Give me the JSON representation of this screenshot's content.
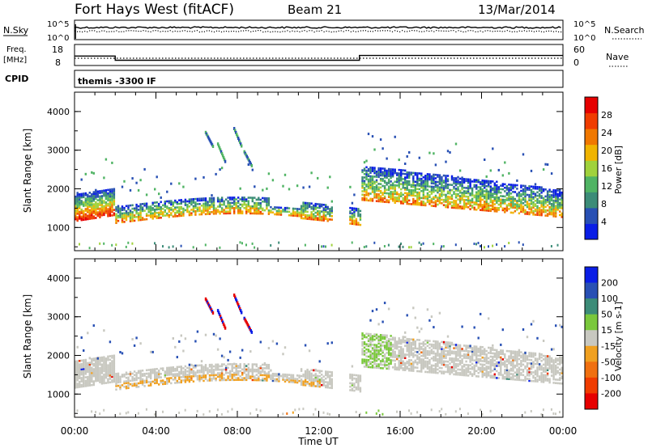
{
  "header": {
    "station": "Fort Hays West (fitACF)",
    "beam": "Beam 21",
    "date": "13/Mar/2014"
  },
  "noise_panel": {
    "left_label": "N.Sky",
    "right_label": "N.Search",
    "left_ticks": [
      "10^5",
      "10^0"
    ],
    "right_ticks": [
      "10^5",
      "10^0"
    ]
  },
  "freq_panel": {
    "left_label_line1": "Freq.",
    "left_label_line2": "[MHz]",
    "right_label": "Nave",
    "left_ticks": [
      "18",
      "8"
    ],
    "right_ticks": [
      "60",
      "0"
    ],
    "freq_segments": [
      {
        "start_hour": 0.0,
        "end_hour": 2.0,
        "freq_mhz": 12.5
      },
      {
        "start_hour": 2.0,
        "end_hour": 14.0,
        "freq_mhz": 10.5
      },
      {
        "start_hour": 14.0,
        "end_hour": 24.0,
        "freq_mhz": 12.8
      }
    ]
  },
  "cpid": {
    "label": "CPID",
    "program": "themis -3300 IF"
  },
  "chart_data": [
    {
      "type": "heatmap",
      "quantity": "power",
      "ylabel": "Slant Range [km]",
      "y_ticks": [
        "1000",
        "2000",
        "3000",
        "4000"
      ],
      "ylim": [
        400,
        4500
      ],
      "xlim": [
        0,
        24
      ],
      "colorbar_label": "Power [dB]",
      "colorbar_ticks": [
        "4",
        "8",
        "12",
        "16",
        "20",
        "24",
        "28"
      ],
      "colorbar_range": [
        0,
        32
      ],
      "colors": [
        "#0a1ee6",
        "#2850b4",
        "#3c8c78",
        "#50b464",
        "#a0d23c",
        "#f0b400",
        "#f07800",
        "#f03c00",
        "#e60000"
      ]
    },
    {
      "type": "heatmap",
      "quantity": "velocity",
      "ylabel": "Slant Range [km]",
      "y_ticks": [
        "1000",
        "2000",
        "3000",
        "4000"
      ],
      "ylim": [
        400,
        4500
      ],
      "xlim": [
        0,
        24
      ],
      "colorbar_label": "Velocity [m s-1]",
      "colorbar_ticks": [
        "200",
        "100",
        "50",
        "15",
        "-15",
        "-50",
        "-100",
        "-200"
      ],
      "colorbar_range": [
        -250,
        250
      ],
      "colors": [
        "#0a1ee6",
        "#2850b4",
        "#3c8c78",
        "#7ac83c",
        "#c8c8c0",
        "#f0a020",
        "#f07010",
        "#f03c00",
        "#e60000"
      ]
    }
  ],
  "x_axis": {
    "label": "Time UT",
    "ticks": [
      "00:00",
      "04:00",
      "08:00",
      "12:00",
      "16:00",
      "20:00",
      "00:00"
    ]
  }
}
